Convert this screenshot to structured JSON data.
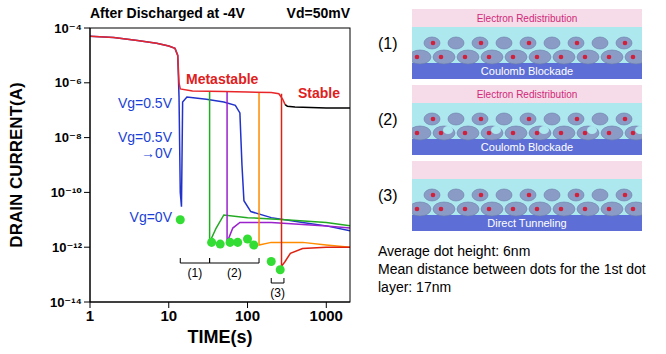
{
  "chart_data": {
    "type": "line",
    "title": "After Discharged at -4V",
    "subtitle": "Vd=50mV",
    "x_label": "TIME(s)",
    "y_label": "DRAIN CURRENT(A)",
    "log": true,
    "grid": false,
    "xlim": [
      1,
      2000
    ],
    "xticks": [
      1,
      10,
      100,
      1000
    ],
    "ylim": [
      1e-14,
      0.0001
    ],
    "yticks": [
      {
        "value": 0.0001,
        "label": "10⁻⁴"
      },
      {
        "value": 1e-06,
        "label": "10⁻⁶"
      },
      {
        "value": 1e-08,
        "label": "10⁻⁸"
      },
      {
        "value": 1e-10,
        "label": "10⁻¹⁰"
      },
      {
        "value": 1e-12,
        "label": "10⁻¹²"
      },
      {
        "value": 1e-14,
        "label": "10⁻¹⁴"
      }
    ],
    "series": [
      {
        "color": "#2233cc",
        "line_style": "solid",
        "x": [
          1,
          2,
          4,
          7,
          10,
          12,
          13,
          13.5,
          14,
          14.5,
          15,
          17,
          30,
          50,
          70,
          80,
          85,
          90,
          110,
          200,
          500,
          1000,
          2000
        ],
        "values": [
          5e-05,
          4.5e-05,
          3.5e-05,
          2.8e-05,
          2.2e-05,
          1.8e-05,
          1e-05,
          3e-07,
          1e-10,
          3e-11,
          2e-07,
          3e-07,
          2.5e-07,
          2e-07,
          1.5e-07,
          8e-08,
          1e-09,
          5e-11,
          2e-11,
          1.2e-11,
          8e-12,
          6e-12,
          4e-12
        ]
      },
      {
        "color": "#22aa22",
        "line_style": "solid",
        "x": [
          33,
          33,
          40,
          50,
          100,
          300,
          1000,
          2000
        ],
        "values": [
          4.7e-07,
          1.5e-12,
          5e-12,
          1.5e-11,
          1.2e-11,
          1e-11,
          8e-12,
          6e-12
        ]
      },
      {
        "color": "#9922cc",
        "line_style": "solid",
        "x": [
          55,
          55,
          65,
          80,
          200,
          1000,
          2000
        ],
        "values": [
          4.7e-07,
          1.5e-12,
          5e-12,
          8e-12,
          8e-12,
          6e-12,
          5e-12
        ]
      },
      {
        "color": "#ff8c00",
        "line_style": "solid",
        "x": [
          140,
          140,
          200,
          500,
          1000,
          2000
        ],
        "values": [
          4.6e-07,
          1.2e-12,
          1.5e-12,
          1.5e-12,
          1.2e-12,
          1e-12
        ]
      },
      {
        "color": "#dd2211",
        "line_style": "solid",
        "x": [
          270,
          270,
          300,
          350,
          500,
          1000,
          2000
        ],
        "values": [
          4e-07,
          2e-13,
          3e-13,
          6e-13,
          9e-13,
          1e-12,
          1e-12
        ]
      },
      {
        "color": "#e8262a",
        "line_style": "solid",
        "x": [
          1,
          2,
          4,
          7,
          10,
          12,
          13,
          13.5,
          14,
          20,
          50,
          100,
          200,
          250,
          280,
          300
        ],
        "values": [
          5e-05,
          4.5e-05,
          3.5e-05,
          2.8e-05,
          2.2e-05,
          1.8e-05,
          1e-05,
          1e-06,
          6e-07,
          5e-07,
          4.8e-07,
          4.6e-07,
          4.4e-07,
          4e-07,
          2.5e-07,
          1.6e-07
        ]
      },
      {
        "color": "#000000",
        "line_style": "solid",
        "x": [
          300,
          320,
          400,
          1000,
          2000
        ],
        "values": [
          1.6e-07,
          1.4e-07,
          1.3e-07,
          1.2e-07,
          1.2e-07
        ]
      },
      {
        "type": "scatter",
        "marker": "circle",
        "color": "#33dd33",
        "x": [
          14,
          35,
          45,
          60,
          75,
          100,
          120,
          200,
          260
        ],
        "values": [
          1e-11,
          1.5e-12,
          1.3e-12,
          1.5e-12,
          1.5e-12,
          2e-12,
          1.2e-12,
          3e-13,
          1.5e-13
        ]
      }
    ],
    "annotations": [
      "Vg=0.5V",
      "Metastable",
      "Stable",
      "Vg=0.5V →0V",
      "Vg=0V"
    ],
    "brackets": [
      {
        "label": "(1)",
        "x": [
          14,
          33
        ]
      },
      {
        "label": "(2)",
        "x": [
          33,
          140
        ]
      },
      {
        "label": "(3)",
        "x": [
          200,
          290
        ]
      }
    ]
  },
  "diagrams": {
    "panels": [
      {
        "label": "(1)",
        "top": "Electron Redistribution",
        "bottom": "Coulomb Blockade"
      },
      {
        "label": "(2)",
        "top": "Electron Redistribution",
        "bottom": "Coulomb Blockade"
      },
      {
        "label": "(3)",
        "bottom": "Direct Tunneling"
      }
    ],
    "notes": [
      "Average dot height: 6nm",
      "Mean distance between dots for the 1st dot layer: 17nm"
    ]
  }
}
